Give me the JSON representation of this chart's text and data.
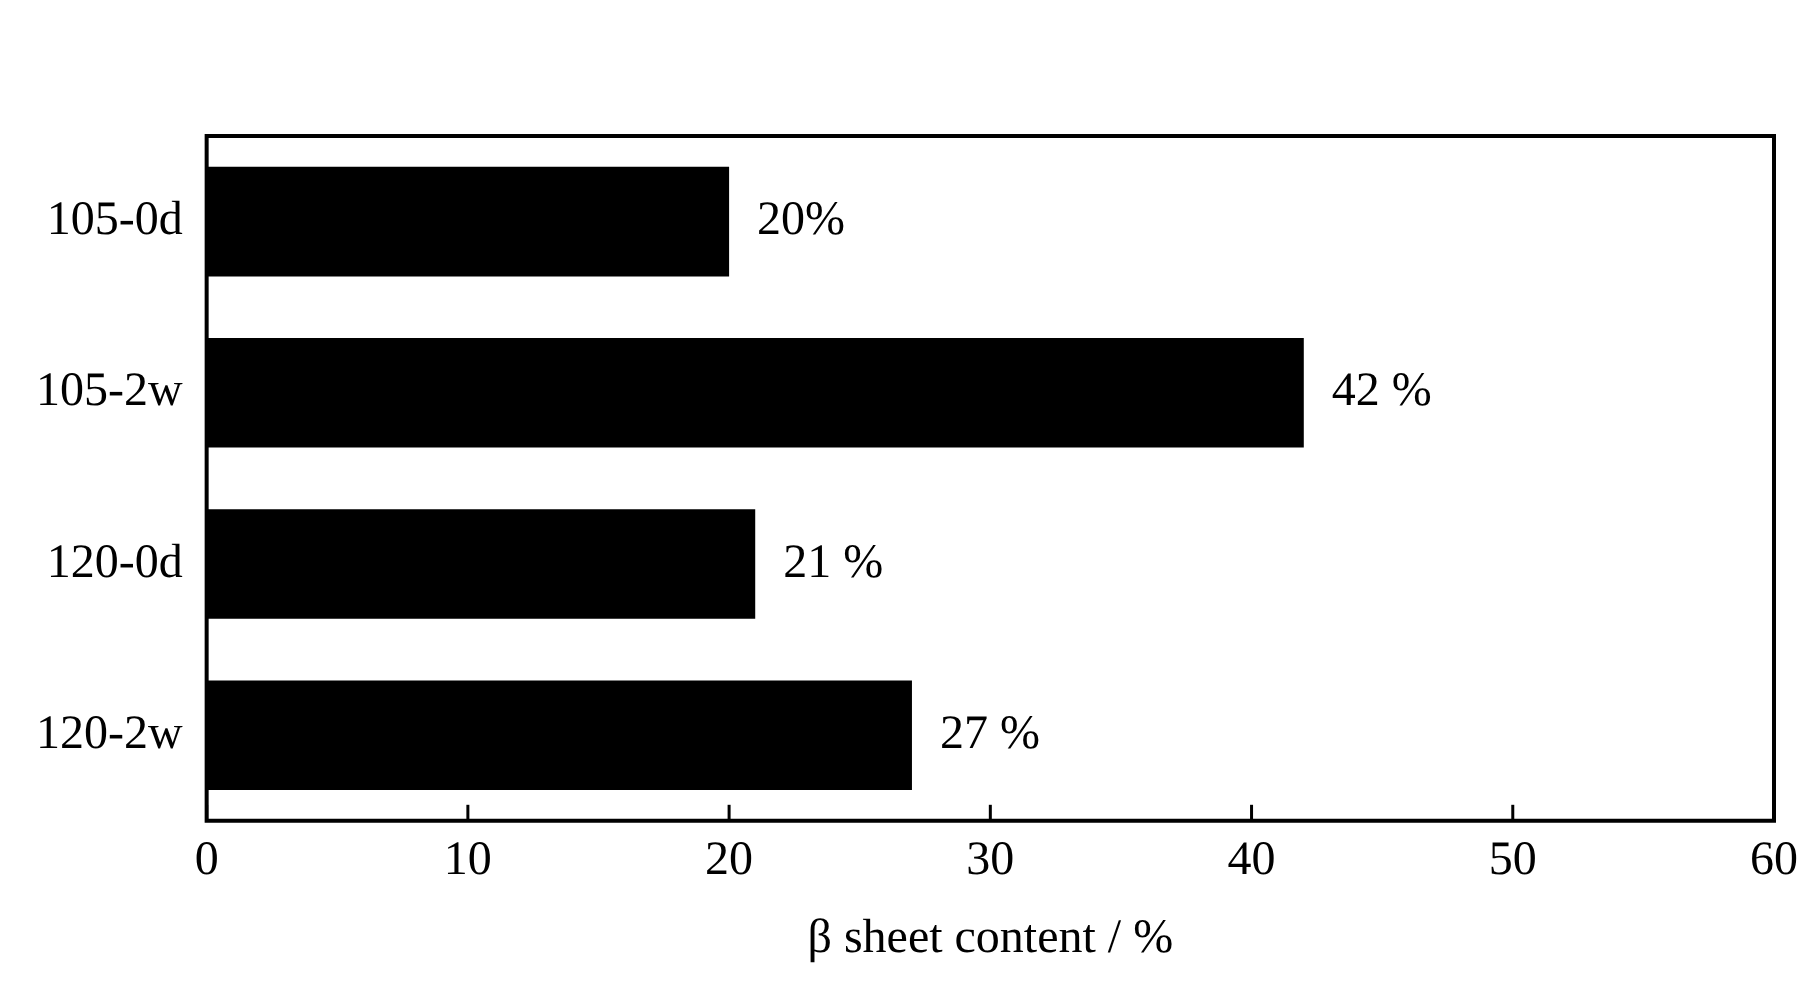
{
  "chart_data": {
    "type": "bar",
    "orientation": "horizontal",
    "xlabel": "β sheet content / %",
    "categories": [
      "105-0d",
      "105-2w",
      "120-0d",
      "120-2w"
    ],
    "values": [
      20,
      42,
      21,
      27
    ],
    "value_labels": [
      "20%",
      "42 %",
      "21 %",
      "27 %"
    ],
    "color": "#000000",
    "xlim": [
      0,
      60
    ],
    "xticks": [
      0,
      10,
      20,
      30,
      40,
      50,
      60
    ],
    "grid": false,
    "legend": false
  }
}
